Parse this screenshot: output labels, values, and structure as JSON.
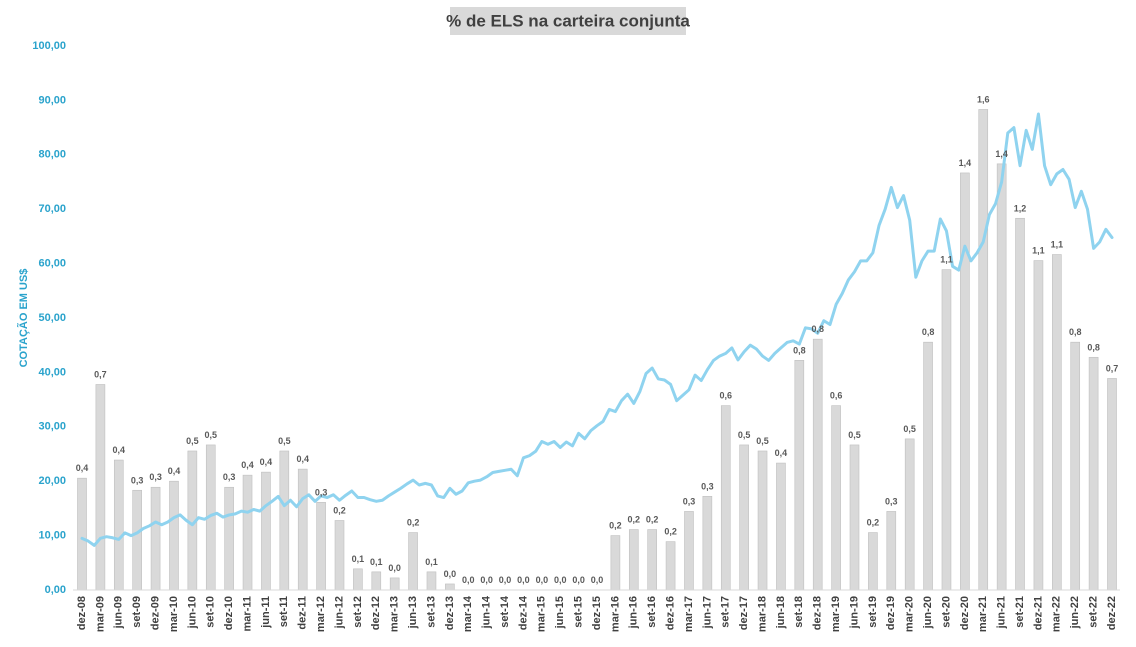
{
  "chart_data": {
    "type": "bar",
    "title": "% de ELS na carteira conjunta",
    "y_label": "COTAÇÃO EM US$",
    "ylim": [
      0,
      100
    ],
    "yticks": [
      {
        "value": 0,
        "label": "0,00"
      },
      {
        "value": 10,
        "label": "10,00"
      },
      {
        "value": 20,
        "label": "20,00"
      },
      {
        "value": 30,
        "label": "30,00"
      },
      {
        "value": 40,
        "label": "40,00"
      },
      {
        "value": 50,
        "label": "50,00"
      },
      {
        "value": 60,
        "label": "60,00"
      },
      {
        "value": 70,
        "label": "70,00"
      },
      {
        "value": 80,
        "label": "80,00"
      },
      {
        "value": 90,
        "label": "90,00"
      },
      {
        "value": 100,
        "label": "100,00"
      }
    ],
    "y2lim": [
      0,
      1.8
    ],
    "grid": false,
    "categories": [
      "dez-08",
      null,
      null,
      "mar-09",
      null,
      null,
      "jun-09",
      null,
      null,
      "set-09",
      null,
      null,
      "dez-09",
      null,
      null,
      "mar-10",
      null,
      null,
      "jun-10",
      null,
      null,
      "set-10",
      null,
      null,
      "dez-10",
      null,
      null,
      "mar-11",
      null,
      null,
      "jun-11",
      null,
      null,
      "set-11",
      null,
      null,
      "dez-11",
      null,
      null,
      "mar-12",
      null,
      null,
      "jun-12",
      null,
      null,
      "set-12",
      null,
      null,
      "dez-12",
      null,
      null,
      "mar-13",
      null,
      null,
      "jun-13",
      null,
      null,
      "set-13",
      null,
      null,
      "dez-13",
      null,
      null,
      "mar-14",
      null,
      null,
      "jun-14",
      null,
      null,
      "set-14",
      null,
      null,
      "dez-14",
      null,
      null,
      "mar-15",
      null,
      null,
      "jun-15",
      null,
      null,
      "set-15",
      null,
      null,
      "dez-15",
      null,
      null,
      "mar-16",
      null,
      null,
      "jun-16",
      null,
      null,
      "set-16",
      null,
      null,
      "dez-16",
      null,
      null,
      "mar-17",
      null,
      null,
      "jun-17",
      null,
      null,
      "set-17",
      null,
      null,
      "dez-17",
      null,
      null,
      "mar-18",
      null,
      null,
      "jun-18",
      null,
      null,
      "set-18",
      null,
      null,
      "dez-18",
      null,
      null,
      "mar-19",
      null,
      null,
      "jun-19",
      null,
      null,
      "set-19",
      null,
      null,
      "dez-19",
      null,
      null,
      "mar-20",
      null,
      null,
      "jun-20",
      null,
      null,
      "set-20",
      null,
      null,
      "dez-20",
      null,
      null,
      "mar-21",
      null,
      null,
      "jun-21",
      null,
      null,
      "set-21",
      null,
      null,
      "dez-21",
      null,
      null,
      "mar-22",
      null,
      null,
      "jun-22",
      null,
      null,
      "set-22",
      null,
      null,
      "dez-22"
    ],
    "series": [
      {
        "type": "bar",
        "axis": "y2",
        "color": "#d9d9d9",
        "edge": "#bfbfbf",
        "values": [
          0.37,
          null,
          null,
          0.68,
          null,
          null,
          0.43,
          null,
          null,
          0.33,
          null,
          null,
          0.34,
          null,
          null,
          0.36,
          null,
          null,
          0.46,
          null,
          null,
          0.48,
          null,
          null,
          0.34,
          null,
          null,
          0.38,
          null,
          null,
          0.39,
          null,
          null,
          0.46,
          null,
          null,
          0.4,
          null,
          null,
          0.29,
          null,
          null,
          0.23,
          null,
          null,
          0.07,
          null,
          null,
          0.06,
          null,
          null,
          0.04,
          null,
          null,
          0.19,
          null,
          null,
          0.06,
          null,
          null,
          0.02,
          null,
          null,
          0,
          null,
          null,
          0,
          null,
          null,
          0,
          null,
          null,
          0,
          null,
          null,
          0,
          null,
          null,
          0,
          null,
          null,
          0,
          null,
          null,
          0,
          null,
          null,
          0.18,
          null,
          null,
          0.2,
          null,
          null,
          0.2,
          null,
          null,
          0.16,
          null,
          null,
          0.26,
          null,
          null,
          0.31,
          null,
          null,
          0.61,
          null,
          null,
          0.48,
          null,
          null,
          0.46,
          null,
          null,
          0.42,
          null,
          null,
          0.76,
          null,
          null,
          0.83,
          null,
          null,
          0.61,
          null,
          null,
          0.48,
          null,
          null,
          0.19,
          null,
          null,
          0.26,
          null,
          null,
          0.5,
          null,
          null,
          0.82,
          null,
          null,
          1.06,
          null,
          null,
          1.38,
          null,
          null,
          1.59,
          null,
          null,
          1.41,
          null,
          null,
          1.23,
          null,
          null,
          1.09,
          null,
          null,
          1.11,
          null,
          null,
          0.82,
          null,
          null,
          0.77,
          null,
          null,
          0.7
        ],
        "value_labels": [
          "0,4",
          null,
          null,
          "0,7",
          null,
          null,
          "0,4",
          null,
          null,
          "0,3",
          null,
          null,
          "0,3",
          null,
          null,
          "0,4",
          null,
          null,
          "0,5",
          null,
          null,
          "0,5",
          null,
          null,
          "0,3",
          null,
          null,
          "0,4",
          null,
          null,
          "0,4",
          null,
          null,
          "0,5",
          null,
          null,
          "0,4",
          null,
          null,
          "0,3",
          null,
          null,
          "0,2",
          null,
          null,
          "0,1",
          null,
          null,
          "0,1",
          null,
          null,
          "0,0",
          null,
          null,
          "0,2",
          null,
          null,
          "0,1",
          null,
          null,
          "0,0",
          null,
          null,
          "0,0",
          null,
          null,
          "0,0",
          null,
          null,
          "0,0",
          null,
          null,
          "0,0",
          null,
          null,
          "0,0",
          null,
          null,
          "0,0",
          null,
          null,
          "0,0",
          null,
          null,
          "0,0",
          null,
          null,
          "0,2",
          null,
          null,
          "0,2",
          null,
          null,
          "0,2",
          null,
          null,
          "0,2",
          null,
          null,
          "0,3",
          null,
          null,
          "0,3",
          null,
          null,
          "0,6",
          null,
          null,
          "0,5",
          null,
          null,
          "0,5",
          null,
          null,
          "0,4",
          null,
          null,
          "0,8",
          null,
          null,
          "0,8",
          null,
          null,
          "0,6",
          null,
          null,
          "0,5",
          null,
          null,
          "0,2",
          null,
          null,
          "0,3",
          null,
          null,
          "0,5",
          null,
          null,
          "0,8",
          null,
          null,
          "1,1",
          null,
          null,
          "1,4",
          null,
          null,
          "1,6",
          null,
          null,
          "1,4",
          null,
          null,
          "1,2",
          null,
          null,
          "1,1",
          null,
          null,
          "1,1",
          null,
          null,
          "0,8",
          null,
          null,
          "0,8",
          null,
          null,
          "0,7"
        ]
      },
      {
        "type": "line",
        "color": "#8fd3ef",
        "values": [
          9.5,
          9,
          8.2,
          9.5,
          9.8,
          9.6,
          9.3,
          10.5,
          10,
          10.5,
          11.3,
          11.8,
          12.5,
          12,
          12.5,
          13.3,
          13.8,
          12.8,
          12,
          13.3,
          13,
          13.7,
          14.1,
          13.4,
          13.8,
          14,
          14.5,
          14.3,
          14.8,
          14.5,
          15.5,
          16.3,
          17.2,
          15.5,
          16.5,
          15.3,
          16.8,
          17.5,
          16.3,
          17.3,
          17,
          17.5,
          16.5,
          17.4,
          18.2,
          17,
          17,
          16.6,
          16.3,
          16.5,
          17.3,
          18,
          18.7,
          19.5,
          20.2,
          19.3,
          19.6,
          19.3,
          17.3,
          17,
          18.7,
          17.6,
          18.2,
          19.7,
          20,
          20.2,
          20.8,
          21.6,
          21.8,
          22,
          22.2,
          21,
          24.3,
          24.7,
          25.5,
          27.3,
          26.8,
          27.3,
          26.2,
          27.2,
          26.5,
          28.8,
          27.8,
          29.3,
          30.2,
          31,
          33.2,
          32.8,
          34.8,
          36,
          34.3,
          36.5,
          39.8,
          40.8,
          38.8,
          38.6,
          37.8,
          34.8,
          35.8,
          36.8,
          39.5,
          38.5,
          40.5,
          42.2,
          43,
          43.5,
          44.5,
          42.3,
          43.8,
          45,
          44.3,
          43,
          42.2,
          43.5,
          44.5,
          45.5,
          45.8,
          45.2,
          48.2,
          48,
          47.2,
          49.5,
          48.8,
          52.5,
          54.5,
          57,
          58.5,
          60.5,
          60.5,
          62,
          67,
          70,
          74,
          70.3,
          72.5,
          68,
          57.5,
          60.5,
          62.3,
          62.3,
          68.2,
          66,
          59.5,
          58.8,
          63.2,
          60.5,
          62,
          64,
          69,
          71,
          75,
          84,
          85,
          78,
          84.5,
          81,
          87.5,
          78,
          74.5,
          76.5,
          77.3,
          75.5,
          70.3,
          73.3,
          70,
          62.8,
          64,
          66.3,
          64.8
        ]
      }
    ]
  }
}
